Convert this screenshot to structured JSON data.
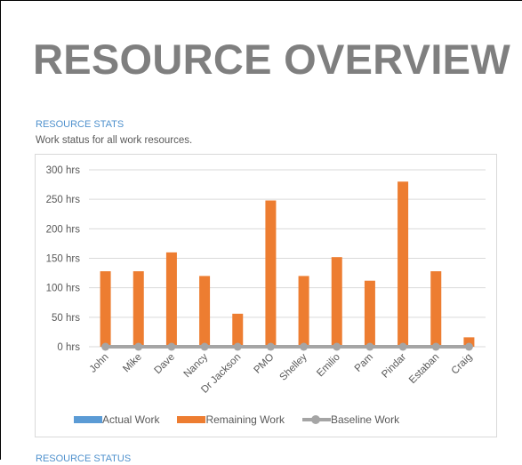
{
  "report": {
    "title": "RESOURCE OVERVIEW",
    "section_heading": "RESOURCE STATS",
    "section_description": "Work status for all work resources.",
    "next_section_heading": "RESOURCE STATUS"
  },
  "colors": {
    "title": "#7f7f7f",
    "heading": "#4f91cd",
    "actual_work": "#5b9bd5",
    "remaining_work": "#ed7d31",
    "baseline_work": "#a5a5a5",
    "gridline": "#d9d9d9",
    "axis_text": "#595959"
  },
  "chart_data": {
    "type": "bar",
    "categories": [
      "John",
      "Mike",
      "Dave",
      "Nancy",
      "Dr Jackson",
      "PMO",
      "Shelley",
      "Emilio",
      "Pam",
      "Pindar",
      "Estaban",
      "Craig"
    ],
    "series": [
      {
        "name": "Actual Work",
        "kind": "bar",
        "values": [
          0,
          0,
          0,
          0,
          0,
          0,
          0,
          0,
          0,
          0,
          0,
          0
        ]
      },
      {
        "name": "Remaining Work",
        "kind": "bar",
        "values": [
          128,
          128,
          160,
          120,
          56,
          248,
          120,
          152,
          112,
          280,
          128,
          16
        ]
      },
      {
        "name": "Baseline Work",
        "kind": "line",
        "values": [
          0,
          0,
          0,
          0,
          0,
          0,
          0,
          0,
          0,
          0,
          0,
          0
        ]
      }
    ],
    "yticks": [
      "300 hrs",
      "250 hrs",
      "200 hrs",
      "150 hrs",
      "100 hrs",
      "50 hrs",
      "0 hrs"
    ],
    "ylim": [
      0,
      300
    ],
    "grid": true,
    "legend_position": "bottom"
  }
}
